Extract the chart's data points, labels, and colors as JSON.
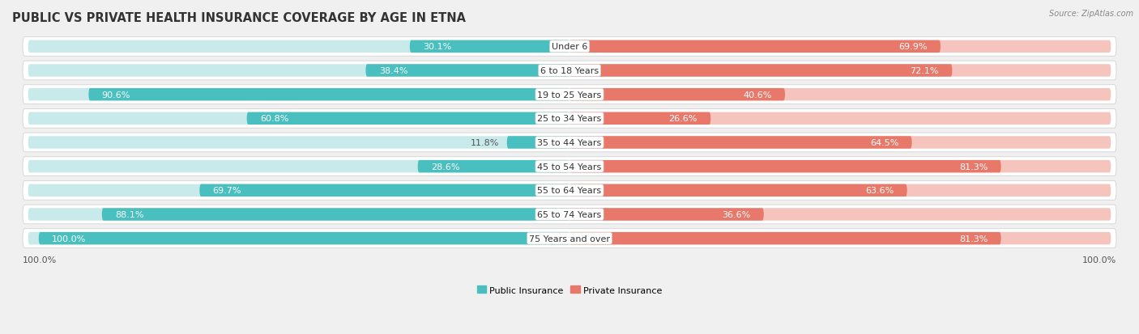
{
  "title": "PUBLIC VS PRIVATE HEALTH INSURANCE COVERAGE BY AGE IN ETNA",
  "source": "Source: ZipAtlas.com",
  "categories": [
    "Under 6",
    "6 to 18 Years",
    "19 to 25 Years",
    "25 to 34 Years",
    "35 to 44 Years",
    "45 to 54 Years",
    "55 to 64 Years",
    "65 to 74 Years",
    "75 Years and over"
  ],
  "public_values": [
    30.1,
    38.4,
    90.6,
    60.8,
    11.8,
    28.6,
    69.7,
    88.1,
    100.0
  ],
  "private_values": [
    69.9,
    72.1,
    40.6,
    26.6,
    64.5,
    81.3,
    63.6,
    36.6,
    81.3
  ],
  "public_color": "#49bfbf",
  "private_color": "#e8796a",
  "public_color_light": "#c8eaea",
  "private_color_light": "#f5c4bc",
  "row_bg_color": "#e8e8e8",
  "title_fontsize": 10.5,
  "label_fontsize": 8.0,
  "cat_fontsize": 8.0,
  "figsize": [
    14.06,
    4.14
  ],
  "dpi": 100,
  "bottom_label": "100.0%"
}
